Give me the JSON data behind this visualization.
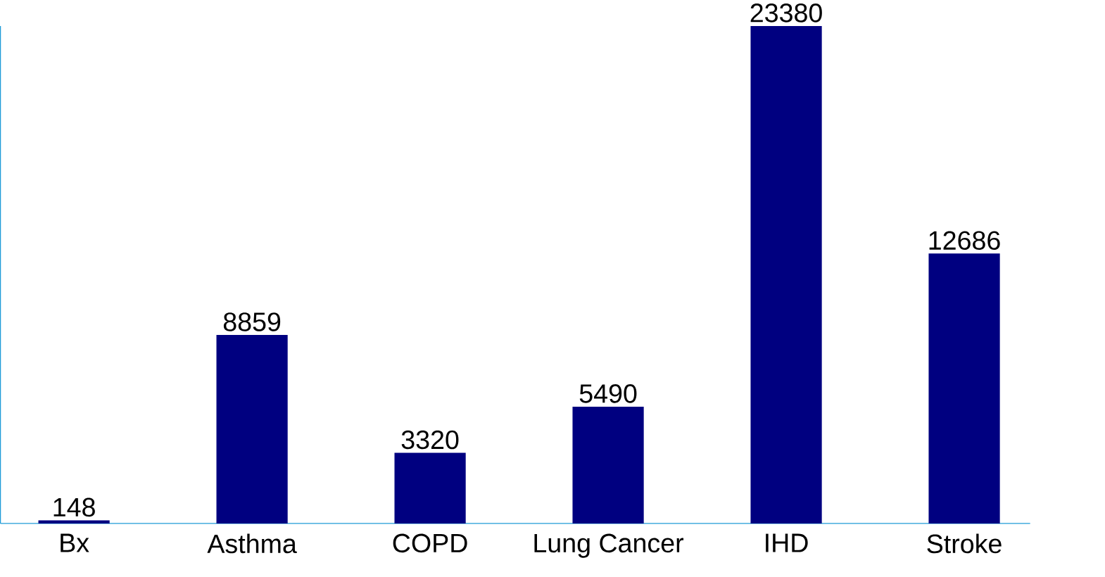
{
  "chart_data": {
    "type": "bar",
    "categories": [
      "Bx",
      "Asthma",
      "COPD",
      "Lung Cancer",
      "IHD",
      "Stroke"
    ],
    "values": [
      148,
      8859,
      3320,
      5490,
      23380,
      12686
    ],
    "color": "#000080",
    "data_labels": true
  }
}
